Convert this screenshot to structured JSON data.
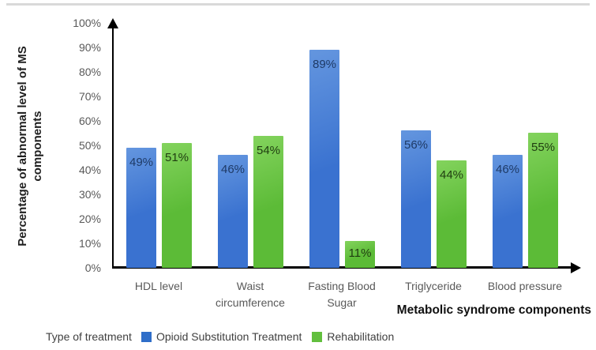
{
  "figure": {
    "top_rule_color": "#d9d9d9",
    "background": "#ffffff"
  },
  "chart_data": {
    "type": "bar",
    "title": "",
    "categories": [
      "HDL level",
      "Waist circumference",
      "Fasting Blood Sugar",
      "Triglyceride",
      "Blood pressure"
    ],
    "series": [
      {
        "name": "Opioid Substitution Treatment",
        "values": [
          49,
          46,
          89,
          56,
          46
        ],
        "color": "#3a72d0",
        "color_light": "#6496df",
        "swatch_color": "#2f6ec9",
        "label_color": "#1e3a66"
      },
      {
        "name": "Rehabilitation",
        "values": [
          51,
          54,
          11,
          44,
          55
        ],
        "color": "#5cbb37",
        "color_light": "#83d35d",
        "swatch_color": "#62bf3e",
        "label_color": "#1f3d10"
      }
    ],
    "value_suffix": "%",
    "data_labels": [
      [
        "49%",
        "46%",
        "89%",
        "56%",
        "46%"
      ],
      [
        "51%",
        "54%",
        "11%",
        "44%",
        "55%"
      ]
    ],
    "xlabel": "Metabolic syndrome components",
    "ylabel": "Percentage of abnormal level of MS components",
    "y_ticks": [
      "0%",
      "10%",
      "20%",
      "30%",
      "40%",
      "50%",
      "60%",
      "70%",
      "80%",
      "90%",
      "100%"
    ],
    "ylim": [
      0,
      100
    ],
    "grid": false,
    "legend_title": "Type of treatment",
    "legend_position": "bottom",
    "axis_color": "#000000",
    "tick_text_color": "#595959",
    "legend_text_color": "#404040"
  }
}
